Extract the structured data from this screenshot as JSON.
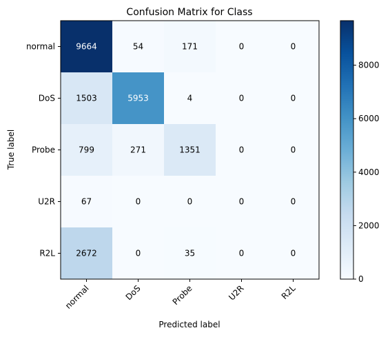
{
  "chart_data": {
    "type": "heatmap",
    "title": "Confusion Matrix for Class",
    "xlabel": "Predicted label",
    "ylabel": "True label",
    "x_categories": [
      "normal",
      "DoS",
      "Probe",
      "U2R",
      "R2L"
    ],
    "y_categories": [
      "normal",
      "DoS",
      "Probe",
      "U2R",
      "R2L"
    ],
    "values": [
      [
        9664,
        54,
        171,
        0,
        0
      ],
      [
        1503,
        5953,
        4,
        0,
        0
      ],
      [
        799,
        271,
        1351,
        0,
        0
      ],
      [
        67,
        0,
        0,
        0,
        0
      ],
      [
        2672,
        0,
        35,
        0,
        0
      ]
    ],
    "colormap": "Blues",
    "color_range": [
      0,
      9664
    ],
    "colorbar_ticks": [
      0,
      2000,
      4000,
      6000,
      8000
    ],
    "x_tick_rotation_deg": 45
  }
}
